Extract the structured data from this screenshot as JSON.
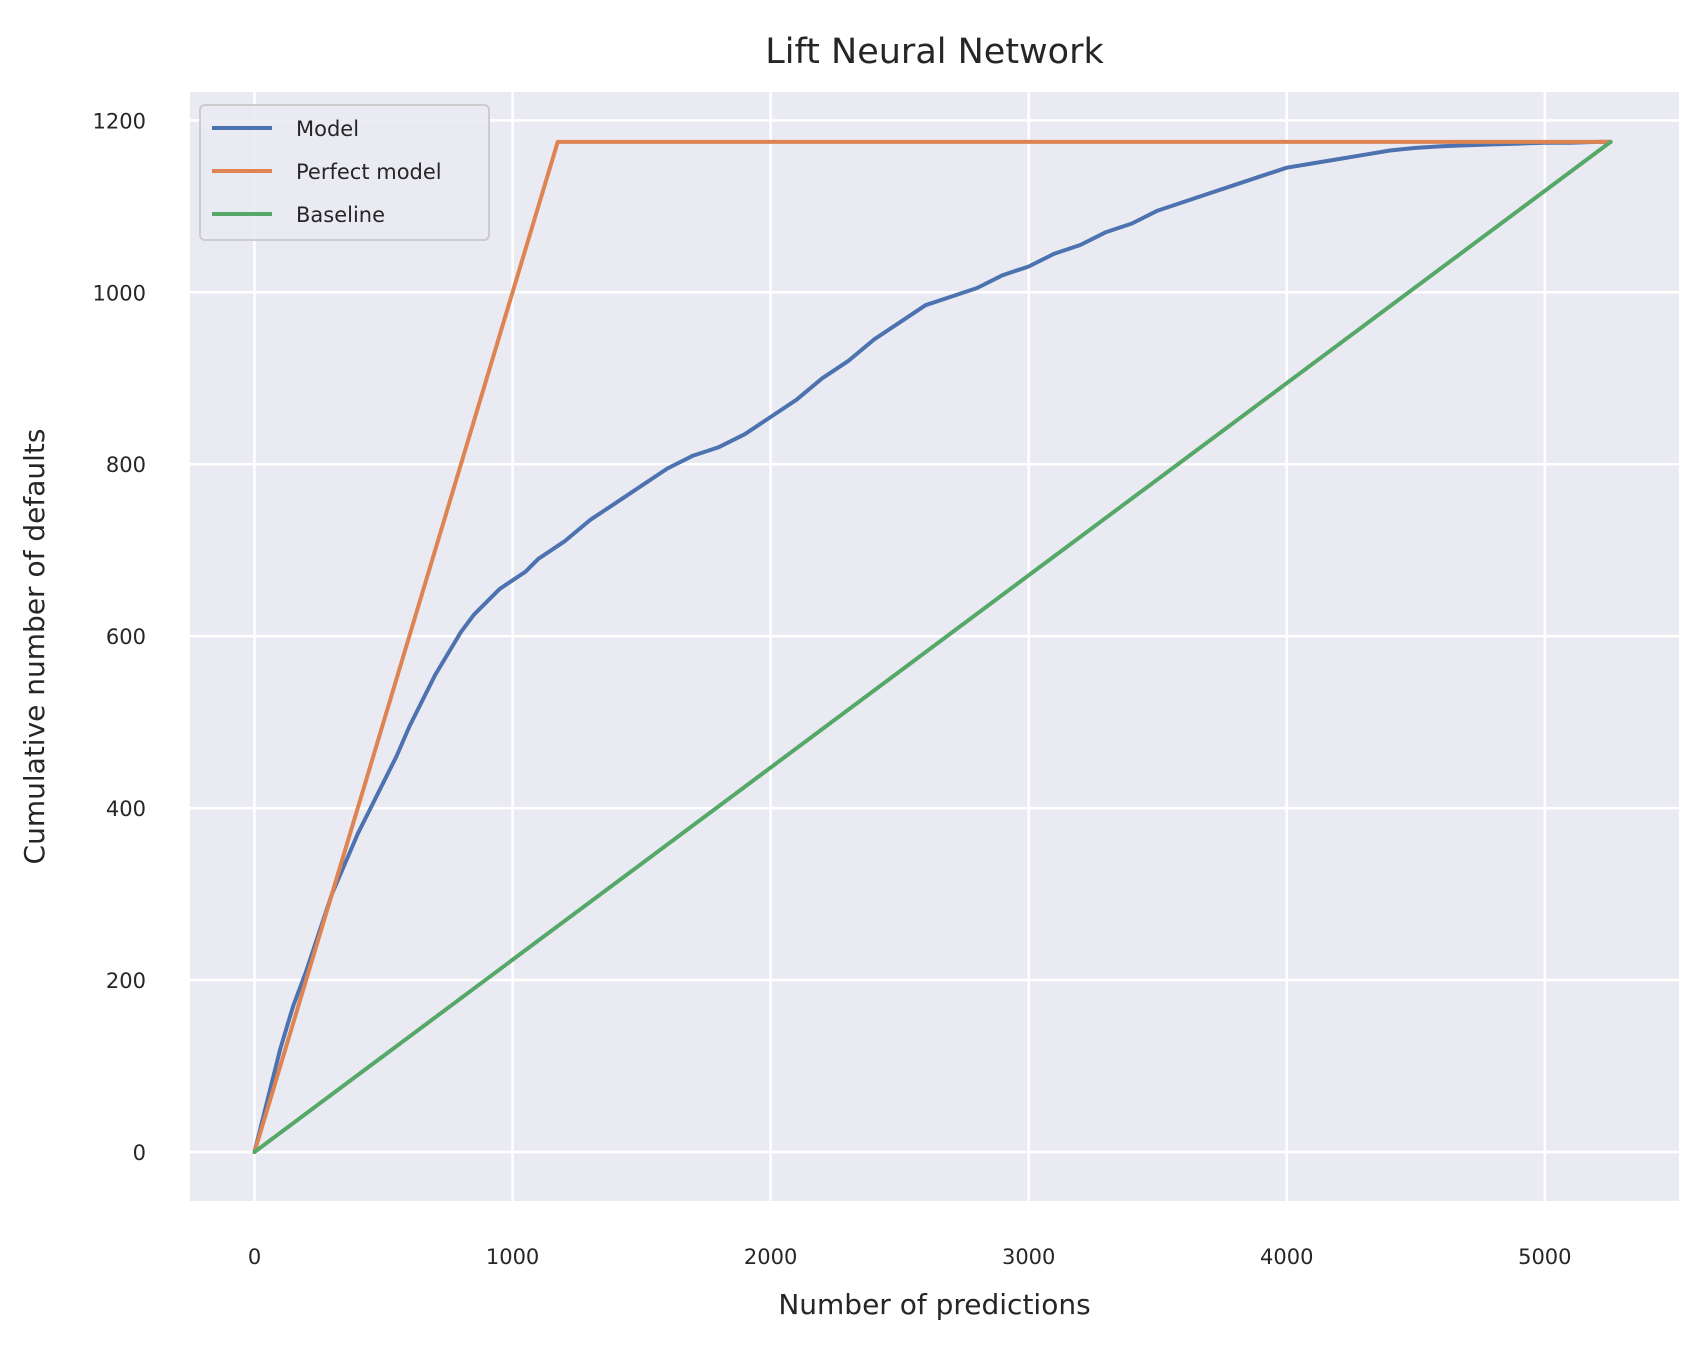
{
  "chart_data": {
    "type": "line",
    "title": "Lift Neural Network",
    "xlabel": "Number of predictions",
    "ylabel": "Cumulative number of defaults",
    "xlim": [
      -250,
      5520
    ],
    "ylim": [
      -57,
      1233
    ],
    "xticks": [
      0,
      1000,
      2000,
      3000,
      4000,
      5000
    ],
    "xtick_labels": [
      "0",
      "1000",
      "2000",
      "3000",
      "4000",
      "5000"
    ],
    "yticks": [
      0,
      200,
      400,
      600,
      800,
      1000,
      1200
    ],
    "ytick_labels": [
      "0",
      "200",
      "400",
      "600",
      "800",
      "1000",
      "1200"
    ],
    "grid": true,
    "legend_position": "top-left",
    "series": [
      {
        "name": "Model",
        "color": "#4c72b0",
        "x": [
          0,
          50,
          100,
          150,
          200,
          250,
          300,
          350,
          400,
          450,
          500,
          550,
          600,
          650,
          700,
          750,
          800,
          850,
          900,
          950,
          1000,
          1050,
          1100,
          1150,
          1200,
          1300,
          1400,
          1450,
          1500,
          1600,
          1700,
          1800,
          1900,
          2000,
          2100,
          2200,
          2300,
          2400,
          2500,
          2600,
          2700,
          2800,
          2900,
          3000,
          3100,
          3200,
          3300,
          3400,
          3500,
          3600,
          3700,
          3800,
          3900,
          4000,
          4100,
          4200,
          4300,
          4400,
          4500,
          4600,
          4700,
          4800,
          4900,
          5000,
          5100,
          5200,
          5255
        ],
        "y": [
          0,
          60,
          120,
          170,
          210,
          255,
          300,
          335,
          370,
          400,
          430,
          460,
          495,
          525,
          555,
          580,
          605,
          625,
          640,
          655,
          665,
          675,
          690,
          700,
          710,
          735,
          755,
          765,
          775,
          795,
          810,
          820,
          835,
          855,
          875,
          900,
          920,
          945,
          965,
          985,
          995,
          1005,
          1020,
          1030,
          1045,
          1055,
          1070,
          1080,
          1095,
          1105,
          1115,
          1125,
          1135,
          1145,
          1150,
          1155,
          1160,
          1165,
          1168,
          1170,
          1171,
          1172,
          1173,
          1174,
          1174,
          1175,
          1175
        ]
      },
      {
        "name": "Perfect model",
        "color": "#dd8452",
        "x": [
          0,
          1175,
          5255
        ],
        "y": [
          0,
          1175,
          1175
        ]
      },
      {
        "name": "Baseline",
        "color": "#55a868",
        "x": [
          0,
          5255
        ],
        "y": [
          0,
          1175
        ]
      }
    ]
  },
  "colors": {
    "plot_background": "#eaeaf2",
    "grid": "#ffffff",
    "text": "#262626"
  }
}
